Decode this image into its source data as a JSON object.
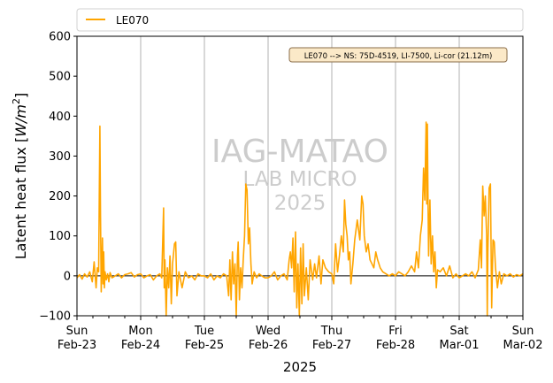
{
  "chart_data": {
    "type": "line",
    "ylabel": "Latent heat flux [W/m²]",
    "ylabel_text": "Latent heat flux [",
    "ylabel_units": "W/m",
    "ylabel_exp": "2",
    "ylabel_close": "]",
    "xlabel": "2025",
    "ylim": [
      -100,
      600
    ],
    "yticks": [
      -100,
      0,
      100,
      200,
      300,
      400,
      500,
      600
    ],
    "xlim_days": [
      0,
      7
    ],
    "xticks": [
      {
        "day": 0,
        "line1": "Sun",
        "line2": "Feb-23"
      },
      {
        "day": 1,
        "line1": "Mon",
        "line2": "Feb-24"
      },
      {
        "day": 2,
        "line1": "Tue",
        "line2": "Feb-25"
      },
      {
        "day": 3,
        "line1": "Wed",
        "line2": "Feb-26"
      },
      {
        "day": 4,
        "line1": "Thu",
        "line2": "Feb-27"
      },
      {
        "day": 5,
        "line1": "Fri",
        "line2": "Feb-28"
      },
      {
        "day": 6,
        "line1": "Sat",
        "line2": "Mar-01"
      },
      {
        "day": 7,
        "line1": "Sun",
        "line2": "Mar-02"
      }
    ],
    "legend_position": "top",
    "grid": "vertical",
    "zero_line": true,
    "annotation": "LE070 --> NS: 75D-4519, LI-7500, Li-cor (21.12m)",
    "watermark": [
      "IAG-MATAO",
      "LAB MICRO",
      "2025"
    ],
    "colors": {
      "series": "#FFA500",
      "zero_line": "#000000",
      "grid": "#b0b0b0",
      "watermark": "#cccccc"
    },
    "series": [
      {
        "name": "LE070",
        "points": [
          [
            0.0,
            -5
          ],
          [
            0.04,
            3
          ],
          [
            0.08,
            -8
          ],
          [
            0.12,
            5
          ],
          [
            0.16,
            -3
          ],
          [
            0.2,
            10
          ],
          [
            0.24,
            -15
          ],
          [
            0.27,
            35
          ],
          [
            0.3,
            -30
          ],
          [
            0.32,
            20
          ],
          [
            0.34,
            10
          ],
          [
            0.35,
            200
          ],
          [
            0.36,
            375
          ],
          [
            0.37,
            150
          ],
          [
            0.38,
            -40
          ],
          [
            0.39,
            20
          ],
          [
            0.4,
            95
          ],
          [
            0.41,
            -20
          ],
          [
            0.42,
            60
          ],
          [
            0.43,
            -30
          ],
          [
            0.44,
            10
          ],
          [
            0.46,
            -10
          ],
          [
            0.48,
            5
          ],
          [
            0.5,
            -15
          ],
          [
            0.52,
            8
          ],
          [
            0.55,
            -5
          ],
          [
            0.6,
            0
          ],
          [
            0.65,
            5
          ],
          [
            0.7,
            -5
          ],
          [
            0.75,
            3
          ],
          [
            0.8,
            5
          ],
          [
            0.85,
            8
          ],
          [
            0.9,
            -3
          ],
          [
            0.95,
            3
          ],
          [
            1.0,
            5
          ],
          [
            1.05,
            -5
          ],
          [
            1.1,
            0
          ],
          [
            1.15,
            3
          ],
          [
            1.2,
            -10
          ],
          [
            1.25,
            0
          ],
          [
            1.3,
            5
          ],
          [
            1.33,
            -5
          ],
          [
            1.36,
            170
          ],
          [
            1.37,
            -30
          ],
          [
            1.38,
            40
          ],
          [
            1.4,
            -100
          ],
          [
            1.42,
            20
          ],
          [
            1.44,
            -30
          ],
          [
            1.46,
            50
          ],
          [
            1.48,
            -70
          ],
          [
            1.5,
            30
          ],
          [
            1.53,
            80
          ],
          [
            1.55,
            85
          ],
          [
            1.57,
            -50
          ],
          [
            1.6,
            10
          ],
          [
            1.65,
            -30
          ],
          [
            1.7,
            10
          ],
          [
            1.75,
            -5
          ],
          [
            1.8,
            0
          ],
          [
            1.85,
            -10
          ],
          [
            1.9,
            5
          ],
          [
            1.95,
            0
          ],
          [
            2.0,
            0
          ],
          [
            2.05,
            -5
          ],
          [
            2.1,
            5
          ],
          [
            2.15,
            -10
          ],
          [
            2.2,
            0
          ],
          [
            2.25,
            -5
          ],
          [
            2.3,
            5
          ],
          [
            2.35,
            0
          ],
          [
            2.38,
            -50
          ],
          [
            2.4,
            40
          ],
          [
            2.42,
            -60
          ],
          [
            2.44,
            60
          ],
          [
            2.46,
            -20
          ],
          [
            2.48,
            30
          ],
          [
            2.5,
            -100
          ],
          [
            2.52,
            50
          ],
          [
            2.53,
            85
          ],
          [
            2.55,
            -60
          ],
          [
            2.57,
            20
          ],
          [
            2.59,
            -30
          ],
          [
            2.61,
            40
          ],
          [
            2.63,
            100
          ],
          [
            2.65,
            230
          ],
          [
            2.67,
            215
          ],
          [
            2.69,
            80
          ],
          [
            2.71,
            120
          ],
          [
            2.73,
            30
          ],
          [
            2.75,
            -20
          ],
          [
            2.78,
            10
          ],
          [
            2.82,
            -5
          ],
          [
            2.86,
            5
          ],
          [
            2.9,
            0
          ],
          [
            2.95,
            -5
          ],
          [
            3.0,
            -5
          ],
          [
            3.05,
            0
          ],
          [
            3.1,
            10
          ],
          [
            3.15,
            -10
          ],
          [
            3.2,
            0
          ],
          [
            3.25,
            5
          ],
          [
            3.3,
            -10
          ],
          [
            3.33,
            40
          ],
          [
            3.35,
            60
          ],
          [
            3.37,
            20
          ],
          [
            3.39,
            95
          ],
          [
            3.41,
            -40
          ],
          [
            3.43,
            110
          ],
          [
            3.45,
            -80
          ],
          [
            3.47,
            30
          ],
          [
            3.49,
            -100
          ],
          [
            3.51,
            70
          ],
          [
            3.53,
            -70
          ],
          [
            3.55,
            80
          ],
          [
            3.57,
            -50
          ],
          [
            3.6,
            20
          ],
          [
            3.63,
            -60
          ],
          [
            3.66,
            40
          ],
          [
            3.7,
            -10
          ],
          [
            3.73,
            30
          ],
          [
            3.76,
            -5
          ],
          [
            3.8,
            50
          ],
          [
            3.83,
            -20
          ],
          [
            3.86,
            40
          ],
          [
            3.9,
            20
          ],
          [
            3.95,
            10
          ],
          [
            4.0,
            5
          ],
          [
            4.03,
            -20
          ],
          [
            4.06,
            80
          ],
          [
            4.09,
            10
          ],
          [
            4.12,
            50
          ],
          [
            4.15,
            100
          ],
          [
            4.18,
            60
          ],
          [
            4.2,
            190
          ],
          [
            4.22,
            130
          ],
          [
            4.24,
            100
          ],
          [
            4.26,
            40
          ],
          [
            4.28,
            60
          ],
          [
            4.3,
            -20
          ],
          [
            4.33,
            30
          ],
          [
            4.36,
            90
          ],
          [
            4.4,
            140
          ],
          [
            4.44,
            90
          ],
          [
            4.47,
            200
          ],
          [
            4.49,
            180
          ],
          [
            4.51,
            100
          ],
          [
            4.54,
            60
          ],
          [
            4.57,
            80
          ],
          [
            4.6,
            40
          ],
          [
            4.63,
            30
          ],
          [
            4.66,
            20
          ],
          [
            4.69,
            60
          ],
          [
            4.72,
            40
          ],
          [
            4.76,
            20
          ],
          [
            4.8,
            10
          ],
          [
            4.85,
            5
          ],
          [
            4.9,
            0
          ],
          [
            4.95,
            5
          ],
          [
            5.0,
            0
          ],
          [
            5.05,
            10
          ],
          [
            5.1,
            5
          ],
          [
            5.15,
            0
          ],
          [
            5.2,
            10
          ],
          [
            5.25,
            25
          ],
          [
            5.3,
            10
          ],
          [
            5.33,
            60
          ],
          [
            5.36,
            20
          ],
          [
            5.39,
            100
          ],
          [
            5.42,
            140
          ],
          [
            5.44,
            270
          ],
          [
            5.46,
            190
          ],
          [
            5.48,
            385
          ],
          [
            5.49,
            180
          ],
          [
            5.5,
            380
          ],
          [
            5.51,
            200
          ],
          [
            5.52,
            50
          ],
          [
            5.54,
            190
          ],
          [
            5.56,
            30
          ],
          [
            5.58,
            100
          ],
          [
            5.6,
            10
          ],
          [
            5.62,
            60
          ],
          [
            5.64,
            -30
          ],
          [
            5.66,
            15
          ],
          [
            5.7,
            10
          ],
          [
            5.75,
            20
          ],
          [
            5.8,
            0
          ],
          [
            5.85,
            25
          ],
          [
            5.9,
            -5
          ],
          [
            5.95,
            5
          ],
          [
            6.0,
            -5
          ],
          [
            6.05,
            0
          ],
          [
            6.1,
            5
          ],
          [
            6.15,
            0
          ],
          [
            6.2,
            10
          ],
          [
            6.25,
            -5
          ],
          [
            6.3,
            15
          ],
          [
            6.33,
            90
          ],
          [
            6.35,
            20
          ],
          [
            6.37,
            225
          ],
          [
            6.39,
            150
          ],
          [
            6.41,
            200
          ],
          [
            6.43,
            100
          ],
          [
            6.44,
            -100
          ],
          [
            6.45,
            60
          ],
          [
            6.47,
            220
          ],
          [
            6.49,
            230
          ],
          [
            6.51,
            -80
          ],
          [
            6.53,
            90
          ],
          [
            6.55,
            85
          ],
          [
            6.57,
            20
          ],
          [
            6.6,
            -30
          ],
          [
            6.63,
            10
          ],
          [
            6.66,
            -20
          ],
          [
            6.7,
            5
          ],
          [
            6.75,
            0
          ],
          [
            6.8,
            5
          ],
          [
            6.85,
            -3
          ],
          [
            6.9,
            3
          ],
          [
            6.95,
            0
          ],
          [
            7.0,
            5
          ]
        ]
      }
    ]
  }
}
